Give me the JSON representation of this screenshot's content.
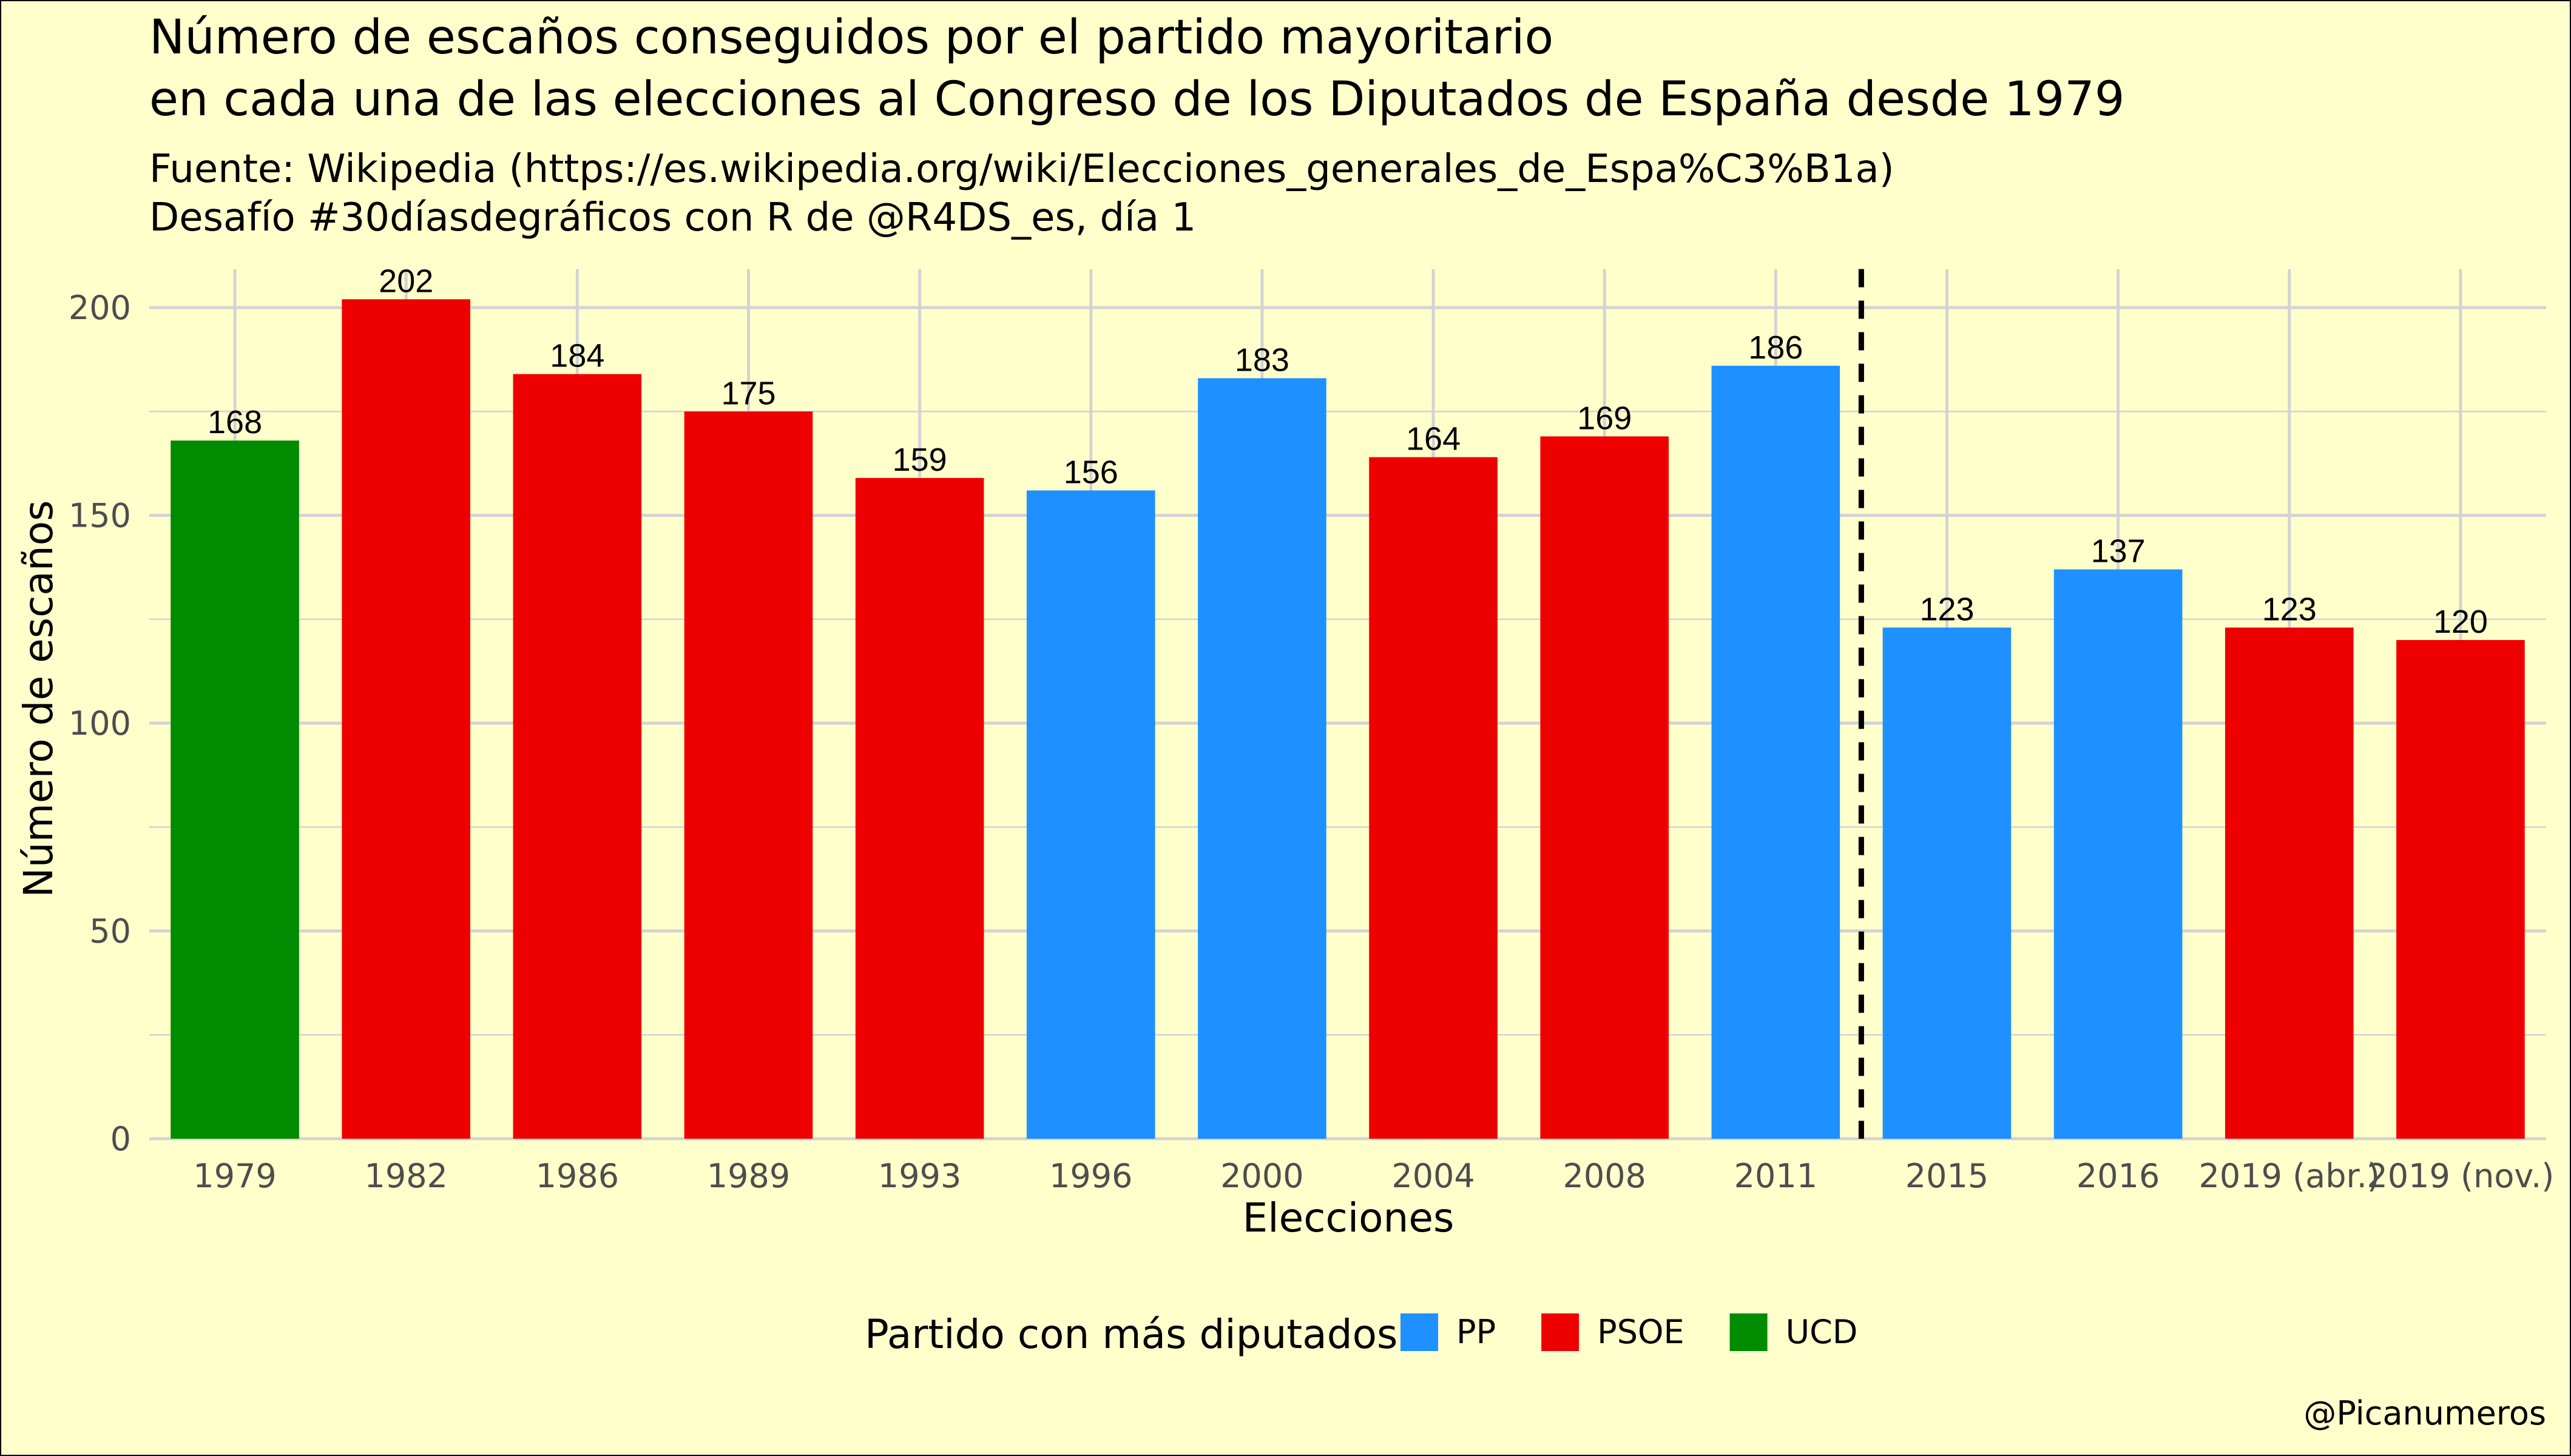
{
  "chart_data": {
    "type": "bar",
    "title": [
      "Número de escaños conseguidos por el partido mayoritario",
      "en cada una de las elecciones al Congreso de los Diputados de España desde 1979"
    ],
    "subtitle": [
      "Fuente: Wikipedia (https://es.wikipedia.org/wiki/Elecciones_generales_de_Espa%C3%B1a)",
      "Desafío #30díasdegráficos con R de @R4DS_es, día 1"
    ],
    "xlabel": "Elecciones",
    "ylabel": "Número de escaños",
    "ylim": [
      0,
      210
    ],
    "yticks": [
      0,
      50,
      100,
      150,
      200
    ],
    "categories": [
      "1979",
      "1982",
      "1986",
      "1989",
      "1993",
      "1996",
      "2000",
      "2004",
      "2008",
      "2011",
      "2015",
      "2016",
      "2019 (abr.)",
      "2019 (nov.)"
    ],
    "values": [
      168,
      202,
      184,
      175,
      159,
      156,
      183,
      164,
      169,
      186,
      123,
      137,
      123,
      120
    ],
    "party": [
      "UCD",
      "PSOE",
      "PSOE",
      "PSOE",
      "PSOE",
      "PP",
      "PP",
      "PSOE",
      "PSOE",
      "PP",
      "PP",
      "PP",
      "PSOE",
      "PSOE"
    ],
    "reference_line": {
      "between": [
        "2011",
        "2015"
      ],
      "style": "dashed"
    },
    "legend": {
      "title": "Partido con más diputados",
      "position": "bottom",
      "entries": [
        {
          "name": "PP",
          "color": "#1E90FF"
        },
        {
          "name": "PSOE",
          "color": "#EE0000"
        },
        {
          "name": "UCD",
          "color": "#008B00"
        }
      ]
    },
    "grid": true,
    "caption": "@Picanumeros"
  }
}
